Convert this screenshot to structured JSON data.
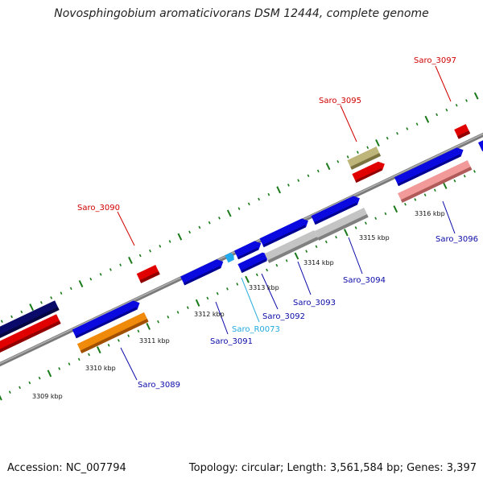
{
  "title": "Novosphingobium aromaticivorans DSM 12444, complete genome",
  "footer": {
    "accession": "Accession: NC_007794",
    "summary": "Topology: circular; Length: 3,561,584 bp; Genes: 3,397"
  },
  "colors": {
    "backbone": "#8a8a8a",
    "tick": "#1a7a1a",
    "feature_blue": "#0a0ae0",
    "feature_red": "#e00000",
    "feature_navy": "#0a0a6a",
    "feature_orange": "#f08a0a",
    "feature_gray": "#b8b8b8",
    "feature_pink": "#f09a9a",
    "feature_olive": "#b8b070",
    "feature_cyan": "#22aaee",
    "label_blue": "#0a0aa8",
    "label_red": "#d00000",
    "label_cyan": "#22aadd"
  },
  "kbp_labels": [
    "3309 kbp",
    "3310 kbp",
    "3311 kbp",
    "3312 kbp",
    "3313 kbp",
    "3314 kbp",
    "3315 kbp",
    "3316 kbp"
  ],
  "gene_labels": [
    {
      "text": "Saro_3097",
      "color": "red"
    },
    {
      "text": "Saro_3095",
      "color": "red"
    },
    {
      "text": "Saro_3090",
      "color": "red"
    },
    {
      "text": "Saro_3096",
      "color": "blue"
    },
    {
      "text": "Saro_3094",
      "color": "blue"
    },
    {
      "text": "Saro_3093",
      "color": "blue"
    },
    {
      "text": "Saro_3092",
      "color": "blue"
    },
    {
      "text": "Saro_R0073",
      "color": "cyan"
    },
    {
      "text": "Saro_3091",
      "color": "blue"
    },
    {
      "text": "Saro_3089",
      "color": "blue"
    }
  ]
}
